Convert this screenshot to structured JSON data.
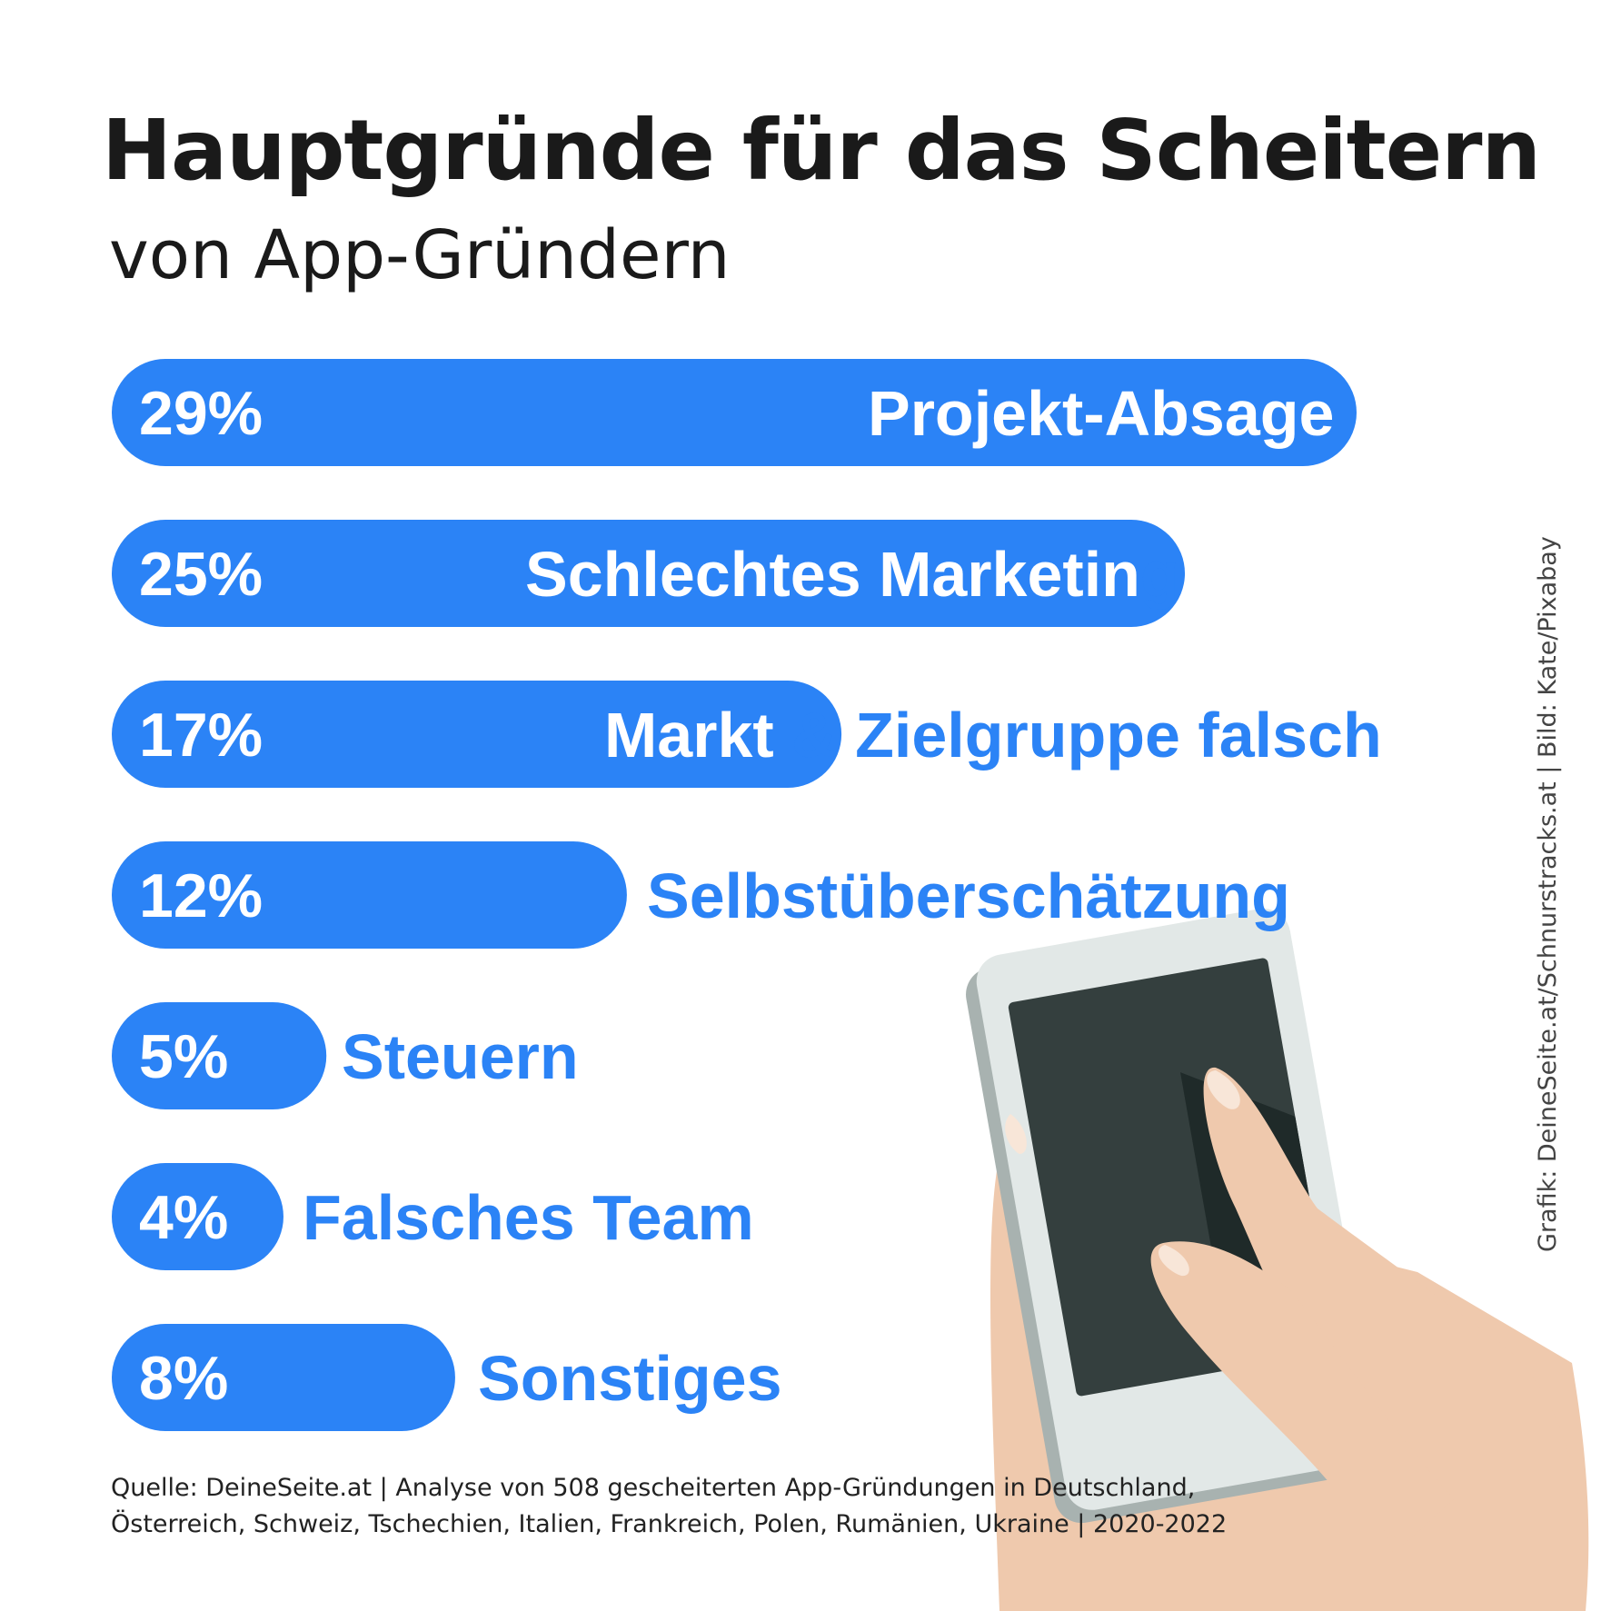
{
  "title": "Hauptgründe für das Scheitern",
  "subtitle": "von App-Gründern",
  "colors": {
    "bar": "#2b83f6",
    "label_on_white": "#2b83f6",
    "label_on_bar": "#ffffff"
  },
  "chart_data": {
    "type": "bar",
    "orientation": "horizontal",
    "categories": [
      "Projekt-Absage",
      "Schlechtes Marketing",
      "Markt & Zielgruppe  falsch",
      "Selbstüberschätzung",
      "Steuern",
      "Falsches Team",
      "Sonstiges"
    ],
    "values": [
      29,
      25,
      17,
      12,
      5,
      4,
      8
    ],
    "value_labels": [
      "29%",
      "25%",
      "17%",
      "12%",
      "5%",
      "4%",
      "8%"
    ],
    "xlim": [
      0,
      29
    ],
    "grid": false,
    "legend": "none"
  },
  "source": {
    "line1": "Quelle: DeineSeite.at | Analyse von 508 gescheiterten App-Gründungen in Deutschland,",
    "line2": "Österreich, Schweiz, Tschechien, Italien, Frankreich, Polen, Rumänien, Ukraine | 2020-2022"
  },
  "credit": "Grafik: DeineSeite.at/Schnurstracks.at | Bild: Kate/Pixabay",
  "illustration": "hand-holding-smartphone"
}
